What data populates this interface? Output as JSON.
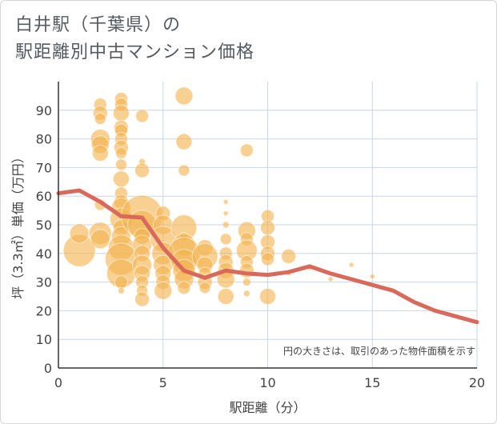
{
  "title_lines": [
    "白井駅（千葉県）の",
    "駅距離別中古マンション価格"
  ],
  "chart_data": {
    "type": "scatter",
    "xlabel": "駅距離（分）",
    "ylabel": "坪（3.3㎡）単価（万円）",
    "xlim": [
      0,
      20
    ],
    "ylim": [
      0,
      100
    ],
    "xticks": [
      0,
      5,
      10,
      15,
      20
    ],
    "yticks": [
      0,
      10,
      20,
      30,
      40,
      50,
      60,
      70,
      80,
      90
    ],
    "note": "円の大きさは、取引のあった物件面積を示す",
    "colors": {
      "bubble": "#f3b34f",
      "line": "#d9695a",
      "grid": "#c8d6e3"
    },
    "points": [
      {
        "x": 1,
        "y": 41,
        "s": 20
      },
      {
        "x": 1,
        "y": 47,
        "s": 12
      },
      {
        "x": 2,
        "y": 92,
        "s": 8
      },
      {
        "x": 2,
        "y": 89,
        "s": 9
      },
      {
        "x": 2,
        "y": 87,
        "s": 7
      },
      {
        "x": 2,
        "y": 80,
        "s": 12
      },
      {
        "x": 2,
        "y": 78,
        "s": 11
      },
      {
        "x": 2,
        "y": 75,
        "s": 10
      },
      {
        "x": 2,
        "y": 57,
        "s": 7
      },
      {
        "x": 2,
        "y": 47,
        "s": 14
      },
      {
        "x": 2,
        "y": 45,
        "s": 12
      },
      {
        "x": 3,
        "y": 94,
        "s": 8
      },
      {
        "x": 3,
        "y": 92,
        "s": 8
      },
      {
        "x": 3,
        "y": 89,
        "s": 10
      },
      {
        "x": 3,
        "y": 84,
        "s": 9
      },
      {
        "x": 3,
        "y": 83,
        "s": 8
      },
      {
        "x": 3,
        "y": 80,
        "s": 8
      },
      {
        "x": 3,
        "y": 77,
        "s": 9
      },
      {
        "x": 3,
        "y": 75,
        "s": 7
      },
      {
        "x": 3,
        "y": 71,
        "s": 7
      },
      {
        "x": 3,
        "y": 66,
        "s": 10
      },
      {
        "x": 3,
        "y": 61,
        "s": 8
      },
      {
        "x": 3,
        "y": 58,
        "s": 9
      },
      {
        "x": 3,
        "y": 56,
        "s": 12
      },
      {
        "x": 3,
        "y": 52,
        "s": 14
      },
      {
        "x": 3,
        "y": 49,
        "s": 10
      },
      {
        "x": 3,
        "y": 46,
        "s": 12
      },
      {
        "x": 3,
        "y": 42,
        "s": 16
      },
      {
        "x": 3,
        "y": 38,
        "s": 20
      },
      {
        "x": 3,
        "y": 33,
        "s": 18
      },
      {
        "x": 3,
        "y": 30,
        "s": 8
      },
      {
        "x": 3,
        "y": 27,
        "s": 4
      },
      {
        "x": 4,
        "y": 88,
        "s": 8
      },
      {
        "x": 4,
        "y": 72,
        "s": 4
      },
      {
        "x": 4,
        "y": 69,
        "s": 9
      },
      {
        "x": 4,
        "y": 53,
        "s": 26
      },
      {
        "x": 4,
        "y": 50,
        "s": 18
      },
      {
        "x": 4,
        "y": 46,
        "s": 10
      },
      {
        "x": 4,
        "y": 43,
        "s": 12
      },
      {
        "x": 4,
        "y": 40,
        "s": 10
      },
      {
        "x": 4,
        "y": 36,
        "s": 12
      },
      {
        "x": 4,
        "y": 33,
        "s": 10
      },
      {
        "x": 4,
        "y": 30,
        "s": 8
      },
      {
        "x": 4,
        "y": 27,
        "s": 7
      },
      {
        "x": 4,
        "y": 24,
        "s": 9
      },
      {
        "x": 5,
        "y": 54,
        "s": 9
      },
      {
        "x": 5,
        "y": 50,
        "s": 12
      },
      {
        "x": 5,
        "y": 45,
        "s": 16
      },
      {
        "x": 5,
        "y": 40,
        "s": 14
      },
      {
        "x": 5,
        "y": 36,
        "s": 12
      },
      {
        "x": 5,
        "y": 33,
        "s": 10
      },
      {
        "x": 5,
        "y": 30,
        "s": 9
      },
      {
        "x": 5,
        "y": 27,
        "s": 11
      },
      {
        "x": 6,
        "y": 95,
        "s": 11
      },
      {
        "x": 6,
        "y": 79,
        "s": 10
      },
      {
        "x": 6,
        "y": 69,
        "s": 7
      },
      {
        "x": 6,
        "y": 49,
        "s": 16
      },
      {
        "x": 6,
        "y": 46,
        "s": 5
      },
      {
        "x": 6,
        "y": 43,
        "s": 14
      },
      {
        "x": 6,
        "y": 40,
        "s": 20
      },
      {
        "x": 6,
        "y": 37,
        "s": 16
      },
      {
        "x": 6,
        "y": 34,
        "s": 14
      },
      {
        "x": 6,
        "y": 31,
        "s": 12
      },
      {
        "x": 6,
        "y": 28,
        "s": 8
      },
      {
        "x": 7,
        "y": 42,
        "s": 10
      },
      {
        "x": 7,
        "y": 39,
        "s": 16
      },
      {
        "x": 7,
        "y": 36,
        "s": 10
      },
      {
        "x": 7,
        "y": 33,
        "s": 8
      },
      {
        "x": 7,
        "y": 30,
        "s": 9
      },
      {
        "x": 7,
        "y": 28,
        "s": 7
      },
      {
        "x": 8,
        "y": 58,
        "s": 3
      },
      {
        "x": 8,
        "y": 54,
        "s": 3
      },
      {
        "x": 8,
        "y": 50,
        "s": 4
      },
      {
        "x": 8,
        "y": 45,
        "s": 7
      },
      {
        "x": 8,
        "y": 40,
        "s": 8
      },
      {
        "x": 8,
        "y": 37,
        "s": 9
      },
      {
        "x": 8,
        "y": 34,
        "s": 10
      },
      {
        "x": 8,
        "y": 31,
        "s": 11
      },
      {
        "x": 8,
        "y": 25,
        "s": 10
      },
      {
        "x": 9,
        "y": 76,
        "s": 8
      },
      {
        "x": 9,
        "y": 48,
        "s": 11
      },
      {
        "x": 9,
        "y": 45,
        "s": 8
      },
      {
        "x": 9,
        "y": 41,
        "s": 13
      },
      {
        "x": 9,
        "y": 37,
        "s": 8
      },
      {
        "x": 9,
        "y": 34,
        "s": 9
      },
      {
        "x": 9,
        "y": 30,
        "s": 5
      },
      {
        "x": 9,
        "y": 26,
        "s": 4
      },
      {
        "x": 10,
        "y": 53,
        "s": 8
      },
      {
        "x": 10,
        "y": 49,
        "s": 9
      },
      {
        "x": 10,
        "y": 44,
        "s": 9
      },
      {
        "x": 10,
        "y": 40,
        "s": 9
      },
      {
        "x": 10,
        "y": 38,
        "s": 8
      },
      {
        "x": 10,
        "y": 25,
        "s": 10
      },
      {
        "x": 11,
        "y": 39,
        "s": 9
      },
      {
        "x": 11,
        "y": 33,
        "s": 3
      },
      {
        "x": 12,
        "y": 35,
        "s": 3
      },
      {
        "x": 13,
        "y": 31,
        "s": 3
      },
      {
        "x": 14,
        "y": 36,
        "s": 3
      },
      {
        "x": 15,
        "y": 32,
        "s": 3
      }
    ],
    "trend": {
      "x": [
        0,
        1,
        2,
        3,
        4,
        5,
        6,
        7,
        8,
        9,
        10,
        11,
        12,
        13,
        14,
        15,
        16,
        17,
        18,
        19,
        20
      ],
      "y": [
        61,
        62,
        58,
        53,
        52.5,
        42,
        34,
        31.5,
        34,
        33,
        32.5,
        33.5,
        35.5,
        33,
        31,
        29,
        27,
        23,
        20,
        18,
        16
      ]
    }
  }
}
